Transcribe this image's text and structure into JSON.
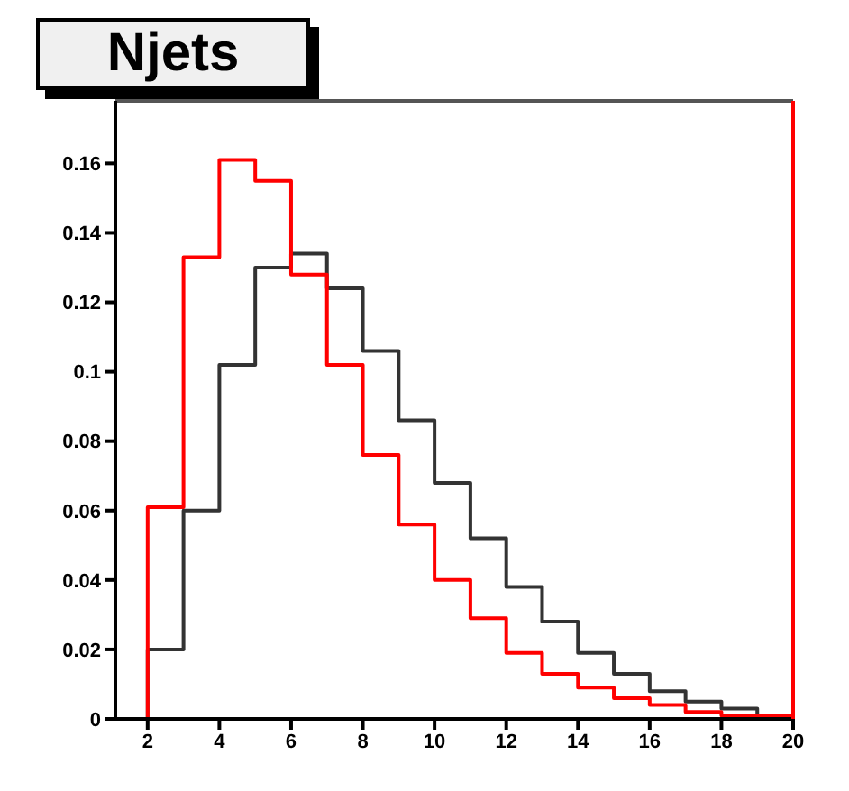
{
  "chart_data": {
    "type": "histogram",
    "title": "Njets",
    "bins": [
      2,
      3,
      4,
      5,
      6,
      7,
      8,
      9,
      10,
      11,
      12,
      13,
      14,
      15,
      16,
      17,
      18,
      19,
      20
    ],
    "series": [
      {
        "color": "#333333",
        "values": [
          0.02,
          0.06,
          0.102,
          0.13,
          0.134,
          0.124,
          0.106,
          0.086,
          0.068,
          0.052,
          0.038,
          0.028,
          0.019,
          0.013,
          0.008,
          0.005,
          0.003,
          0.001
        ]
      },
      {
        "color": "#ff0000",
        "values": [
          0.061,
          0.133,
          0.161,
          0.155,
          0.128,
          0.102,
          0.076,
          0.056,
          0.04,
          0.029,
          0.019,
          0.013,
          0.009,
          0.006,
          0.004,
          0.002,
          0.001,
          0.001
        ]
      }
    ],
    "xlim": [
      1.1,
      20
    ],
    "ylim": [
      0,
      0.178
    ],
    "xticks": [
      2,
      4,
      6,
      8,
      10,
      12,
      14,
      16,
      18,
      20
    ],
    "yticks": [
      0,
      0.02,
      0.04,
      0.06,
      0.08,
      0.1,
      0.12,
      0.14,
      0.16
    ]
  }
}
